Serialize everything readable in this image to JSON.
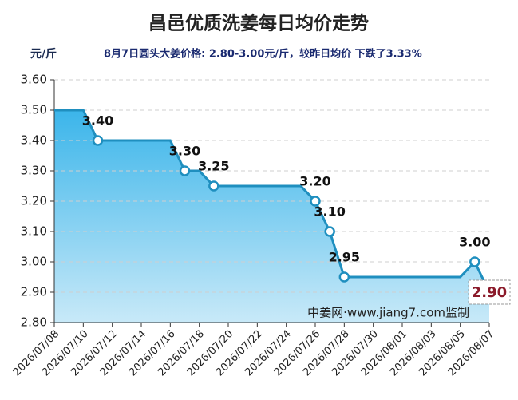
{
  "chart_data": {
    "type": "line",
    "title": "昌邑优质洗姜每日均价走势",
    "y_label": "元/斤",
    "subtitle": "8月7日圆头大姜价格: 2.80-3.00元/斤，较昨日均价 下跌了3.33%",
    "annotation": "中姜网·www.jiang7.com监制",
    "x": [
      "2026/07/08",
      "2026/07/09",
      "2026/07/10",
      "2026/07/11",
      "2026/07/12",
      "2026/07/13",
      "2026/07/14",
      "2026/07/15",
      "2026/07/16",
      "2026/07/17",
      "2026/07/18",
      "2026/07/19",
      "2026/07/20",
      "2026/07/21",
      "2026/07/22",
      "2026/07/23",
      "2026/07/24",
      "2026/07/25",
      "2026/07/26",
      "2026/07/27",
      "2026/07/28",
      "2026/07/29",
      "2026/07/30",
      "2026/07/31",
      "2026/08/01",
      "2026/08/02",
      "2026/08/03",
      "2026/08/04",
      "2026/08/05",
      "2026/08/06",
      "2026/08/07"
    ],
    "values": [
      3.5,
      3.5,
      3.5,
      3.4,
      3.4,
      3.4,
      3.4,
      3.4,
      3.4,
      3.3,
      3.3,
      3.25,
      3.25,
      3.25,
      3.25,
      3.25,
      3.25,
      3.25,
      3.2,
      3.1,
      2.95,
      2.95,
      2.95,
      2.95,
      2.95,
      2.95,
      2.95,
      2.95,
      2.95,
      3.0,
      2.9
    ],
    "value_labels": [
      null,
      null,
      null,
      "3.40",
      null,
      null,
      null,
      null,
      null,
      "3.30",
      null,
      "3.25",
      null,
      null,
      null,
      null,
      null,
      null,
      "3.20",
      "3.10",
      "2.95",
      null,
      null,
      null,
      null,
      null,
      null,
      null,
      null,
      "3.00",
      "2.90"
    ],
    "color": "#1f8fbf",
    "xlim": [
      "2026/07/08",
      "2026/08/07"
    ],
    "xticks": [
      "2026/07/08",
      "2026/07/10",
      "2026/07/12",
      "2026/07/14",
      "2026/07/16",
      "2026/07/18",
      "2026/07/20",
      "2026/07/22",
      "2026/07/24",
      "2026/07/26",
      "2026/07/28",
      "2026/07/30",
      "2026/08/01",
      "2026/08/03",
      "2026/08/05",
      "2026/08/07"
    ],
    "ylim": [
      2.8,
      3.6
    ],
    "yticks": [
      {
        "value": 2.8,
        "label": "2.80"
      },
      {
        "value": 2.9,
        "label": "2.90"
      },
      {
        "value": 3.0,
        "label": "3.00"
      },
      {
        "value": 3.1,
        "label": "3.10"
      },
      {
        "value": 3.2,
        "label": "3.20"
      },
      {
        "value": 3.3,
        "label": "3.30"
      },
      {
        "value": 3.4,
        "label": "3.40"
      },
      {
        "value": 3.5,
        "label": "3.50"
      },
      {
        "value": 3.6,
        "label": "3.60"
      }
    ],
    "grid": true
  }
}
